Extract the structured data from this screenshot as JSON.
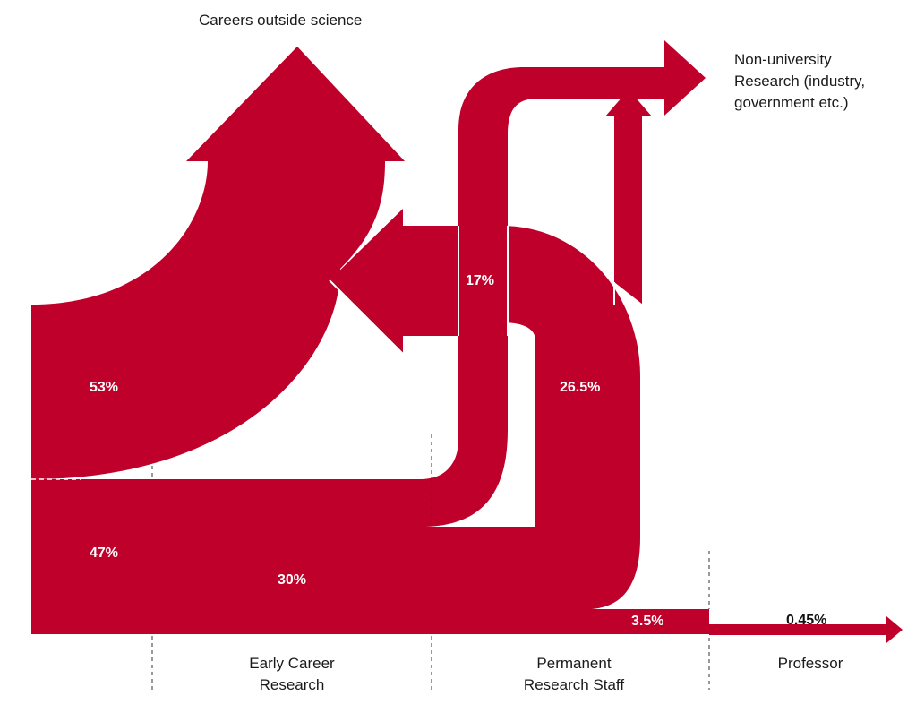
{
  "colors": {
    "flow": "#bf002a",
    "text": "#1a1a1a",
    "divider": "#333333"
  },
  "destinations": {
    "outside_science": "Careers outside science",
    "non_university": [
      "Non-university",
      "Research (industry,",
      "government etc.)"
    ]
  },
  "stages": {
    "early_career": [
      "Early Career",
      "Research"
    ],
    "permanent": [
      "Permanent",
      "Research Staff"
    ],
    "professor": "Professor"
  },
  "flows": {
    "leave_after_phd": "53%",
    "stay_after_phd": "47%",
    "to_non_university": "17%",
    "early_to_permanent": "30%",
    "permanent_to_outside": "26.5%",
    "permanent_to_professor": "3.5%",
    "professor_final": "0.45%"
  }
}
